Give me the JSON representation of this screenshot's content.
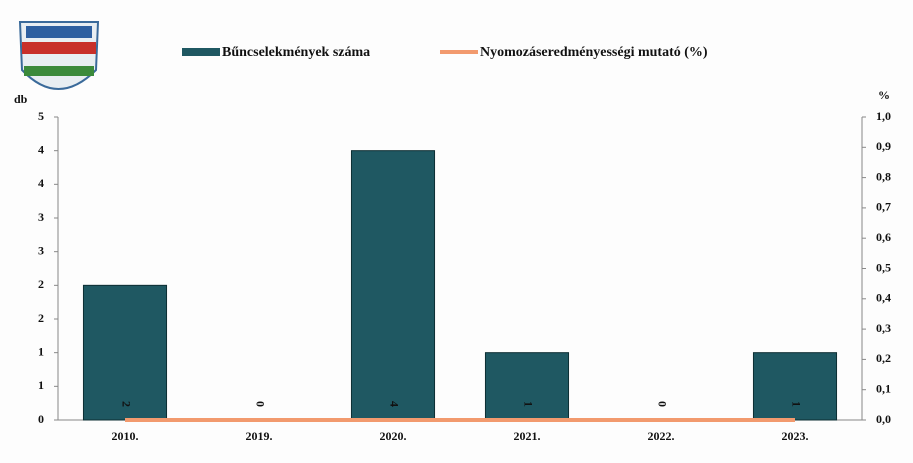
{
  "chart_data": {
    "type": "bar-line",
    "categories": [
      "2010.",
      "2019.",
      "2020.",
      "2021.",
      "2022.",
      "2023."
    ],
    "series": [
      {
        "name": "Bűncselekmények száma",
        "color": "#1f5862",
        "type": "bar",
        "values": [
          2,
          0,
          4,
          1,
          0,
          1
        ]
      },
      {
        "name": "Nyomozáseredményességi mutató (%)",
        "color": "#f29a6e",
        "type": "line",
        "axis": "y2",
        "values": [
          0,
          0,
          0,
          0,
          0,
          0
        ]
      }
    ],
    "ylabel": "db",
    "y2label": "%",
    "ylim": [
      0,
      4.5
    ],
    "yticks": [
      0,
      {
        "value": 0.5,
        "label": "1"
      },
      1,
      {
        "value": 1.5,
        "label": "2"
      },
      2,
      {
        "value": 2.5,
        "label": "3"
      },
      3,
      {
        "value": 3.5,
        "label": "4"
      },
      4,
      {
        "value": 4.5,
        "label": "5"
      }
    ],
    "y2lim": [
      0,
      1
    ],
    "y2ticks": [
      {
        "value": 0,
        "label": "0,0"
      },
      {
        "value": 0.1,
        "label": "0,1"
      },
      {
        "value": 0.2,
        "label": "0,2"
      },
      {
        "value": 0.3,
        "label": "0,3"
      },
      {
        "value": 0.4,
        "label": "0,4"
      },
      {
        "value": 0.5,
        "label": "0,5"
      },
      {
        "value": 0.6,
        "label": "0,6"
      },
      {
        "value": 0.7,
        "label": "0,7"
      },
      {
        "value": 0.8,
        "label": "0,8"
      },
      {
        "value": 0.9,
        "label": "0,9"
      },
      {
        "value": 1,
        "label": "1,0"
      }
    ],
    "legend": "top"
  }
}
